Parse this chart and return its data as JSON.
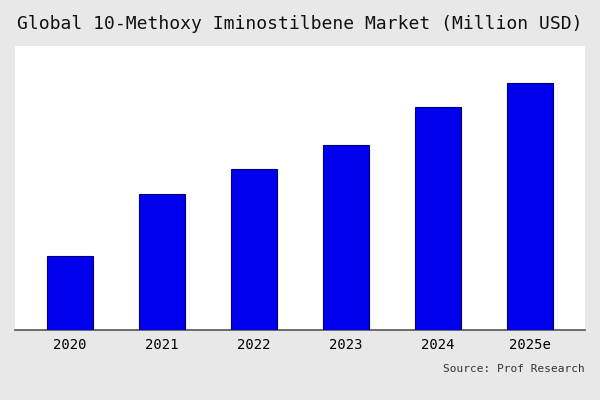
{
  "title": "Global 10-Methoxy Iminostilbene Market (Million USD)",
  "categories": [
    "2020",
    "2021",
    "2022",
    "2023",
    "2024",
    "2025e"
  ],
  "values": [
    3.0,
    5.5,
    6.5,
    7.5,
    9.0,
    10.0
  ],
  "bar_color": "#0000EE",
  "bar_edgecolor": "#000080",
  "bar_linewidth": 0.8,
  "background_color": "#e8e8e8",
  "plot_background_color": "#ffffff",
  "title_fontsize": 13,
  "tick_fontsize": 10,
  "source_text": "Source: Prof Research",
  "ylim": [
    0,
    11.5
  ],
  "bar_width": 0.5
}
